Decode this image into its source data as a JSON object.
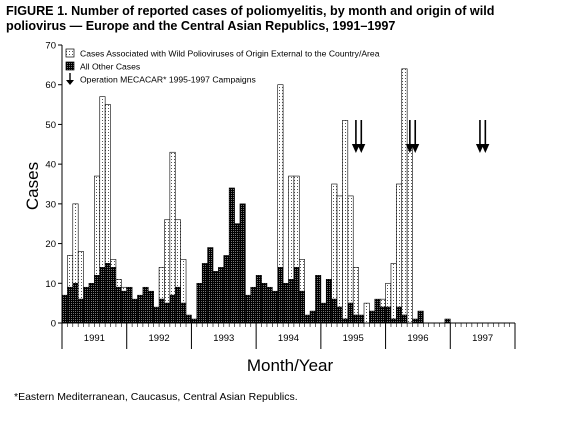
{
  "figure": {
    "title_line1": "FIGURE 1. Number of reported cases of poliomyelitis, by month and origin of wild",
    "title_line2": "poliovirus — Europe and the Central Asian Republics, 1991–1997",
    "footnote": "*Eastern Mediterranean, Caucasus, Central Asian Republics."
  },
  "colors": {
    "bar_external": "#d9d9d9",
    "bar_other": "#1a1a1a",
    "axis": "#000000"
  },
  "chart_data": {
    "type": "bar",
    "stacked": true,
    "xlabel": "Month/Year",
    "ylabel": "Cases",
    "ylim": [
      0,
      70
    ],
    "yticks": [
      0,
      10,
      20,
      30,
      40,
      50,
      60,
      70
    ],
    "year_labels": [
      "1991",
      "1992",
      "1993",
      "1994",
      "1995",
      "1996",
      "1997"
    ],
    "legend": {
      "position": "top-left",
      "items": [
        {
          "label": "Cases Associated with Wild Polioviruses of Origin External to the Country/Area",
          "series": "external"
        },
        {
          "label": "All Other Cases",
          "series": "other"
        },
        {
          "label": "Operation MECACAR* 1995-1997 Campaigns",
          "series": "campaigns"
        }
      ]
    },
    "series": [
      {
        "name": "All Other Cases",
        "values": [
          7,
          9,
          10,
          6,
          9,
          10,
          12,
          14,
          15,
          14,
          9,
          8,
          9,
          6,
          7,
          9,
          8,
          4,
          6,
          5,
          7,
          9,
          5,
          2,
          1,
          10,
          15,
          19,
          13,
          14,
          17,
          34,
          25,
          30,
          7,
          9,
          12,
          10,
          9,
          8,
          14,
          10,
          11,
          14,
          8,
          2,
          3,
          12,
          5,
          11,
          6,
          4,
          1,
          5,
          2,
          2,
          0,
          3,
          6,
          4,
          4,
          1,
          4,
          2,
          0,
          1,
          3,
          0,
          0,
          0,
          0,
          1,
          0,
          0,
          0,
          0,
          0,
          0,
          0,
          0
        ]
      },
      {
        "name": "Cases Associated with Wild Polioviruses of Origin External to the Country/Area",
        "values": [
          0,
          8,
          20,
          12,
          0,
          0,
          25,
          43,
          40,
          2,
          2,
          1,
          0,
          0,
          0,
          0,
          0,
          0,
          8,
          21,
          36,
          17,
          11,
          0,
          0,
          0,
          0,
          0,
          0,
          0,
          0,
          0,
          0,
          0,
          0,
          0,
          0,
          0,
          0,
          0,
          46,
          0,
          26,
          23,
          8,
          0,
          0,
          0,
          0,
          0,
          29,
          28,
          50,
          27,
          12,
          0,
          5,
          0,
          0,
          2,
          6,
          14,
          31,
          62,
          45,
          0,
          0,
          0,
          0,
          0,
          0,
          0,
          0,
          0,
          0,
          0,
          0,
          0,
          0,
          0
        ]
      }
    ],
    "campaign_arrows_month_index": [
      54,
      55,
      64,
      65,
      77,
      78
    ]
  }
}
